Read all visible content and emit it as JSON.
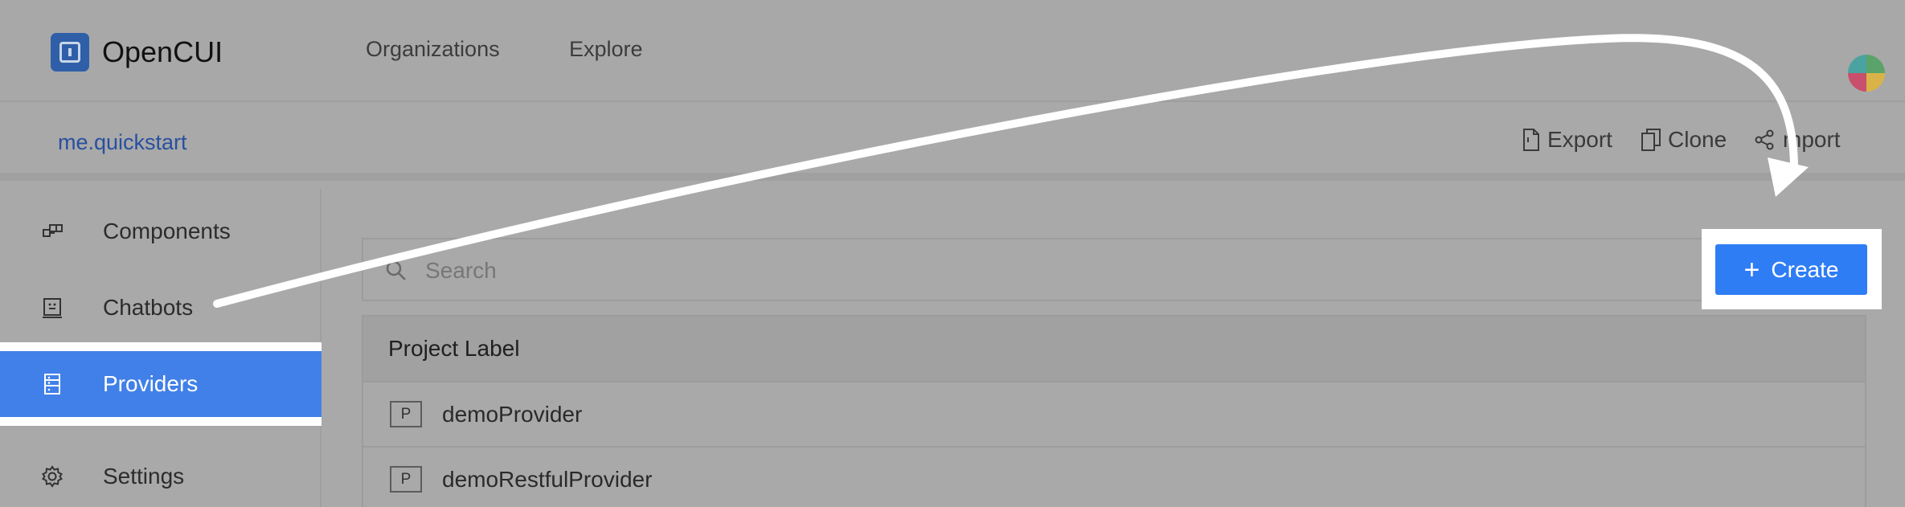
{
  "app": {
    "name": "OpenCUI"
  },
  "topnav": {
    "links": [
      "Organizations",
      "Explore"
    ]
  },
  "subbar": {
    "project": "me.quickstart",
    "actions": [
      {
        "label": "Export",
        "icon": "file-icon"
      },
      {
        "label": "Clone",
        "icon": "copy-icon"
      },
      {
        "label": "mport",
        "icon": "share-icon"
      }
    ]
  },
  "sidebar": {
    "items": [
      {
        "label": "Components",
        "icon": "components-icon",
        "active": false
      },
      {
        "label": "Chatbots",
        "icon": "chatbot-icon",
        "active": false
      },
      {
        "label": "Providers",
        "icon": "providers-icon",
        "active": true
      },
      {
        "label": "Settings",
        "icon": "gear-icon",
        "active": false
      }
    ]
  },
  "main": {
    "search": {
      "placeholder": "Search"
    },
    "create_label": "Create",
    "table": {
      "header": "Project Label",
      "rows": [
        {
          "badge": "P",
          "name": "demoProvider"
        },
        {
          "badge": "P",
          "name": "demoRestfulProvider"
        }
      ]
    }
  },
  "colors": {
    "accent": "#2f7df4",
    "active_sidebar": "#4180e8",
    "link": "#2850a0",
    "overlay_gray": "#a9a9a9"
  }
}
